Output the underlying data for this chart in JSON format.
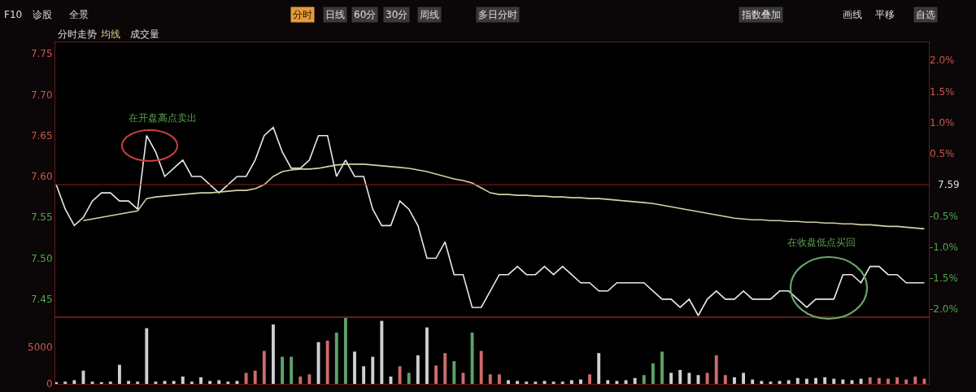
{
  "chart_data": [
    {
      "type": "line",
      "categories": [
        null,
        null,
        null,
        null,
        null,
        null,
        null,
        null,
        null,
        null,
        null,
        null,
        null,
        null,
        null,
        null,
        null,
        null,
        null,
        null,
        null,
        null,
        null,
        null,
        null,
        null,
        null,
        null,
        null,
        null,
        null,
        null,
        null,
        null,
        null,
        null,
        null,
        null,
        null,
        null,
        null,
        null,
        null,
        null,
        null,
        null,
        null,
        null,
        null,
        null,
        null,
        null,
        null,
        null,
        null,
        null,
        null,
        null,
        null,
        null,
        null,
        null,
        null,
        null,
        null,
        null,
        null,
        null,
        null,
        null,
        null,
        null,
        null,
        null,
        null,
        null,
        null,
        null,
        null,
        null,
        null,
        null,
        null,
        null,
        null,
        null,
        null,
        null,
        null,
        null,
        null,
        null,
        null,
        null,
        null,
        null,
        null
      ],
      "series": [
        {
          "color": "#e8e8e8",
          "values": [
            7.59,
            7.56,
            7.54,
            7.55,
            7.57,
            7.58,
            7.58,
            7.57,
            7.57,
            7.56,
            7.65,
            7.63,
            7.6,
            7.61,
            7.62,
            7.6,
            7.6,
            7.59,
            7.58,
            7.59,
            7.6,
            7.6,
            7.62,
            7.65,
            7.66,
            7.63,
            7.61,
            7.61,
            7.62,
            7.65,
            7.65,
            7.6,
            7.62,
            7.6,
            7.6,
            7.56,
            7.54,
            7.54,
            7.57,
            7.56,
            7.54,
            7.5,
            7.5,
            7.52,
            7.48,
            7.48,
            7.44,
            7.44,
            7.46,
            7.48,
            7.48,
            7.49,
            7.48,
            7.48,
            7.49,
            7.48,
            7.49,
            7.48,
            7.47,
            7.47,
            7.46,
            7.46,
            7.47,
            7.47,
            7.47,
            7.47,
            7.46,
            7.45,
            7.45,
            7.44,
            7.45,
            7.43,
            7.45,
            7.46,
            7.45,
            7.45,
            7.46,
            7.45,
            7.45,
            7.45,
            7.46,
            7.46,
            7.45,
            7.44,
            7.45,
            7.45,
            7.45,
            7.48,
            7.48,
            7.47,
            7.49,
            7.49,
            7.48,
            7.48,
            7.47,
            7.47,
            7.47
          ]
        },
        {
          "color": "#d6d2a2",
          "values": [
            null,
            null,
            null,
            7.546,
            7.548,
            7.55,
            7.552,
            7.554,
            7.556,
            7.558,
            7.573,
            7.575,
            7.576,
            7.577,
            7.578,
            7.579,
            7.58,
            7.58,
            7.581,
            7.582,
            7.583,
            7.583,
            7.585,
            7.59,
            7.6,
            7.606,
            7.608,
            7.609,
            7.609,
            7.61,
            7.612,
            7.614,
            7.615,
            7.615,
            7.615,
            7.614,
            7.613,
            7.612,
            7.611,
            7.61,
            7.608,
            7.606,
            7.603,
            7.6,
            7.597,
            7.595,
            7.592,
            7.586,
            7.58,
            7.578,
            7.578,
            7.577,
            7.577,
            7.576,
            7.576,
            7.575,
            7.575,
            7.574,
            7.574,
            7.573,
            7.573,
            7.572,
            7.571,
            7.57,
            7.569,
            7.568,
            7.567,
            7.565,
            7.563,
            7.561,
            7.559,
            7.557,
            7.555,
            7.553,
            7.551,
            7.549,
            7.548,
            7.547,
            7.547,
            7.546,
            7.546,
            7.545,
            7.545,
            7.544,
            7.544,
            7.543,
            7.543,
            7.542,
            7.542,
            7.541,
            7.541,
            7.54,
            7.539,
            7.539,
            7.538,
            7.537,
            7.536
          ]
        }
      ],
      "ylim": [
        7.428,
        7.764
      ],
      "yticks": [
        7.45,
        {
          "value": 7.5,
          "label": "7.50"
        },
        7.55,
        {
          "value": 7.6,
          "label": "7.60"
        },
        7.65,
        {
          "value": 7.7,
          "label": "7.70"
        },
        7.75
      ],
      "y2lim": [
        -2.13,
        2.29
      ],
      "y2ticks": [
        {
          "value": 2.0,
          "label": "2.0%"
        },
        {
          "value": 1.5,
          "label": "1.5%"
        },
        {
          "value": 1.0,
          "label": "1.0%"
        },
        {
          "value": 0.5,
          "label": "0.5%"
        },
        {
          "value": -0.5,
          "label": "-0.5%"
        },
        {
          "value": -1.0,
          "label": "-1.0%"
        },
        {
          "value": -1.5,
          "label": "-1.5%"
        },
        {
          "value": -2.0,
          "label": "-2.0%"
        }
      ],
      "ref_lines": [
        {
          "axis": "y",
          "value": 7.59,
          "label": "7.59",
          "color": "#8a2020"
        }
      ],
      "line_style": "solid",
      "tick_labels": "y",
      "annotations": [
        "在开盘高点卖出",
        "在收盘低点买回",
        "F10",
        "诊股",
        "全景",
        "分时",
        "日线",
        "60分",
        "30分",
        "周线",
        "多日分时",
        "指数叠加",
        "画线",
        "平移",
        "自选",
        "分时走势",
        "均线",
        "成交量"
      ]
    },
    {
      "type": "bar",
      "categories": [
        null,
        null,
        null,
        null,
        null,
        null,
        null,
        null,
        null,
        null,
        null,
        null,
        null,
        null,
        null,
        null,
        null,
        null,
        null,
        null,
        null,
        null,
        null,
        null,
        null,
        null,
        null,
        null,
        null,
        null,
        null,
        null,
        null,
        null,
        null,
        null,
        null,
        null,
        null,
        null,
        null,
        null,
        null,
        null,
        null,
        null,
        null,
        null,
        null,
        null,
        null,
        null,
        null,
        null,
        null,
        null,
        null,
        null,
        null,
        null,
        null,
        null,
        null,
        null,
        null,
        null,
        null,
        null,
        null,
        null,
        null,
        null,
        null,
        null,
        null,
        null,
        null,
        null,
        null,
        null,
        null,
        null,
        null,
        null,
        null,
        null,
        null,
        null,
        null,
        null,
        null,
        null,
        null,
        null,
        null,
        null,
        null
      ],
      "values": [
        200,
        300,
        500,
        1800,
        300,
        200,
        300,
        2600,
        400,
        300,
        7600,
        300,
        400,
        400,
        1000,
        300,
        900,
        400,
        500,
        300,
        400,
        1500,
        1800,
        4500,
        8100,
        3700,
        3700,
        1000,
        1300,
        5700,
        5900,
        7000,
        9000,
        4400,
        2400,
        3700,
        8600,
        1000,
        2400,
        1500,
        3900,
        7700,
        2500,
        4200,
        3100,
        1500,
        7000,
        4500,
        1300,
        1300,
        500,
        400,
        300,
        300,
        400,
        300,
        300,
        500,
        600,
        1300,
        4200,
        500,
        400,
        500,
        800,
        1200,
        2800,
        4400,
        1500,
        1900,
        1500,
        1200,
        1500,
        3900,
        1200,
        900,
        1500,
        600,
        400,
        300,
        400,
        500,
        800,
        700,
        800,
        900,
        700,
        600,
        500,
        700,
        900,
        800,
        700,
        900,
        600,
        1000,
        700
      ],
      "colors": [
        "#cfcfcf",
        "#cfcfcf",
        "#cfcfcf",
        "#cfcfcf",
        "#cfcfcf",
        "#cfcfcf",
        "#cfcfcf",
        "#cfcfcf",
        "#cfcfcf",
        "#cfcfcf",
        "#cfcfcf",
        "#cfcfcf",
        "#cfcfcf",
        "#cfcfcf",
        "#cfcfcf",
        "#cfcfcf",
        "#cfcfcf",
        "#cfcfcf",
        "#cfcfcf",
        "#cfcfcf",
        "#cfcfcf",
        "#d06a6a",
        "#d06a6a",
        "#d06a6a",
        "#cfcfcf",
        "#5aa36a",
        "#5aa36a",
        "#d06a6a",
        "#d06a6a",
        "#cfcfcf",
        "#d06a6a",
        "#5aa36a",
        "#5aa36a",
        "#cfcfcf",
        "#cfcfcf",
        "#cfcfcf",
        "#cfcfcf",
        "#cfcfcf",
        "#d06a6a",
        "#5aa36a",
        "#cfcfcf",
        "#cfcfcf",
        "#d06a6a",
        "#d06a6a",
        "#5aa36a",
        "#d06a6a",
        "#5aa36a",
        "#d06a6a",
        "#d06a6a",
        "#d06a6a",
        "#cfcfcf",
        "#cfcfcf",
        "#cfcfcf",
        "#cfcfcf",
        "#cfcfcf",
        "#cfcfcf",
        "#cfcfcf",
        "#cfcfcf",
        "#cfcfcf",
        "#d06a6a",
        "#cfcfcf",
        "#cfcfcf",
        "#cfcfcf",
        "#cfcfcf",
        "#cfcfcf",
        "#5aa36a",
        "#5aa36a",
        "#5aa36a",
        "#cfcfcf",
        "#cfcfcf",
        "#cfcfcf",
        "#cfcfcf",
        "#d06a6a",
        "#d06a6a",
        "#d06a6a",
        "#cfcfcf",
        "#cfcfcf",
        "#cfcfcf",
        "#cfcfcf",
        "#cfcfcf",
        "#cfcfcf",
        "#cfcfcf",
        "#cfcfcf",
        "#cfcfcf",
        "#cfcfcf",
        "#cfcfcf",
        "#cfcfcf",
        "#cfcfcf",
        "#cfcfcf",
        "#cfcfcf",
        "#d06a6a",
        "#d06a6a",
        "#d06a6a",
        "#d06a6a",
        "#d06a6a",
        "#d06a6a",
        "#d06a6a"
      ],
      "ylim": [
        0,
        9100
      ],
      "yticks": [
        0,
        5000
      ],
      "tick_labels": "y"
    }
  ]
}
